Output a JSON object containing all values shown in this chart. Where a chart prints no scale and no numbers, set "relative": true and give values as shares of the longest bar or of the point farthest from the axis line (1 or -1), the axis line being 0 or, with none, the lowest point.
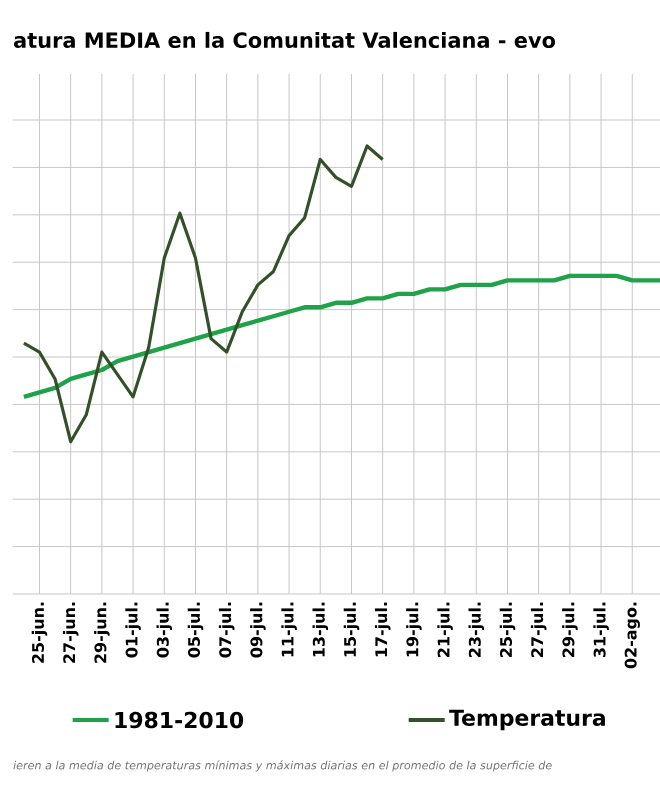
{
  "chart_data": {
    "type": "line",
    "title": "atura MEDIA en la Comunitat Valenciana - evo",
    "relative": true,
    "grid": true,
    "legend": "bottom",
    "categories": [
      null,
      "25-jun.",
      null,
      "27-jun.",
      null,
      "29-jun.",
      null,
      "01-jul.",
      null,
      "03-jul.",
      null,
      "05-jul.",
      null,
      "07-jul.",
      null,
      "09-jul.",
      null,
      "11-jul.",
      null,
      "13-jul.",
      null,
      "15-jul.",
      null,
      "17-jul.",
      null,
      "19-jul.",
      null,
      "21-jul.",
      null,
      "23-jul.",
      null,
      "25-jul.",
      null,
      "27-jul.",
      null,
      "29-jul.",
      null,
      "31-jul.",
      null,
      "02-ago.",
      null,
      null
    ],
    "series": [
      {
        "name": "1981-2010",
        "color": "#1fa24a",
        "values": [
          0.44,
          0.45,
          0.46,
          0.48,
          0.49,
          0.5,
          0.52,
          0.53,
          0.54,
          0.55,
          0.56,
          0.57,
          0.58,
          0.59,
          0.6,
          0.61,
          0.62,
          0.63,
          0.64,
          0.64,
          0.65,
          0.65,
          0.66,
          0.66,
          0.67,
          0.67,
          0.68,
          0.68,
          0.69,
          0.69,
          0.69,
          0.7,
          0.7,
          0.7,
          0.7,
          0.71,
          0.71,
          0.71,
          0.71,
          0.7,
          0.7,
          0.7
        ]
      },
      {
        "name": "Temperatura",
        "color": "#34502b",
        "values": [
          0.56,
          0.54,
          0.48,
          0.34,
          0.4,
          0.54,
          0.49,
          0.44,
          0.55,
          0.75,
          0.85,
          0.75,
          0.57,
          0.54,
          0.63,
          0.69,
          0.72,
          0.8,
          0.84,
          0.97,
          0.93,
          0.91,
          1,
          0.97,
          null,
          null,
          null,
          null,
          null,
          null,
          null,
          null,
          null,
          null,
          null,
          null,
          null,
          null,
          null,
          null,
          null,
          null
        ]
      }
    ],
    "annotations": [
      "ieren a la media de temperaturas mínimas y máximas diarias en el promedio de la superficie de"
    ]
  }
}
